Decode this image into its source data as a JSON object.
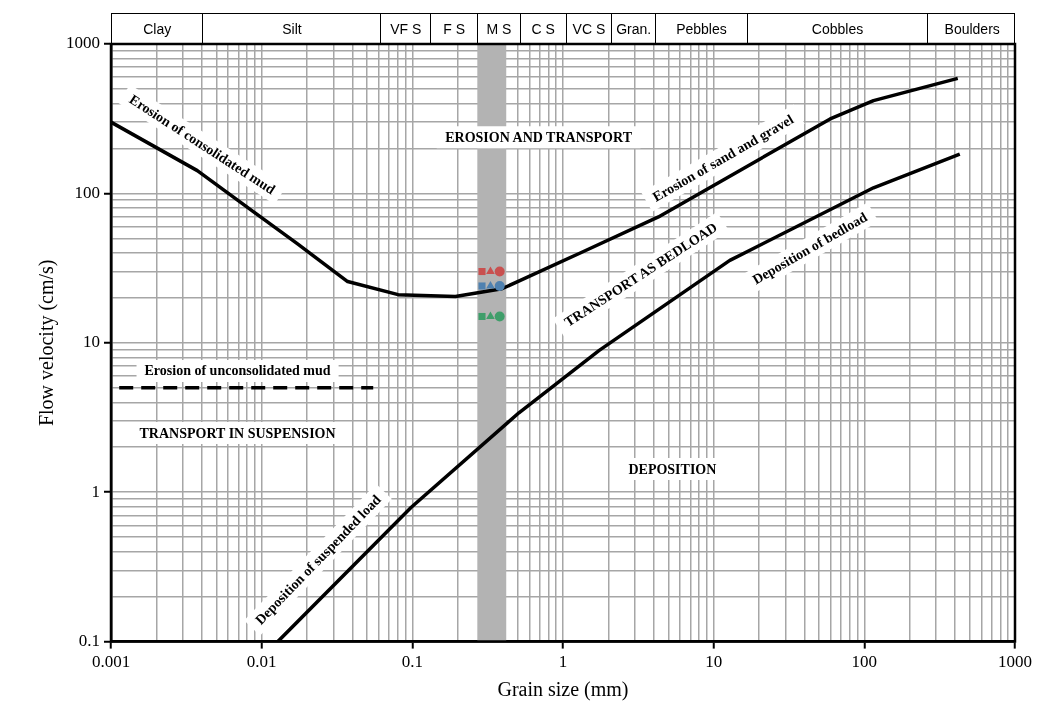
{
  "chart_data": {
    "type": "line",
    "xlabel": "Grain size (mm)",
    "ylabel": "Flow velocity (cm/s)",
    "log": "xy",
    "xlim": [
      0.001,
      1000
    ],
    "ylim": [
      0.1,
      1000
    ],
    "xticks": [
      0.001,
      0.01,
      0.1,
      1,
      10,
      100,
      1000
    ],
    "yticks": [
      0.1,
      1,
      10,
      100,
      1000
    ],
    "grid": true,
    "legend": false,
    "series": [
      {
        "color": "#000000",
        "line_style": "solid",
        "marker": "none",
        "x": [
          0.001,
          0.00374,
          0.0174,
          0.0372,
          0.0805,
          0.193,
          0.393,
          0.5,
          1.28,
          4.3,
          59.3,
          115,
          417
        ],
        "values": [
          300,
          142,
          45.7,
          25.7,
          21,
          20.4,
          23,
          25.7,
          39.6,
          69.6,
          315,
          418,
          589
        ]
      },
      {
        "color": "#000000",
        "line_style": "solid",
        "marker": "none",
        "x": [
          0.0128,
          0.098,
          0.51,
          1.74,
          12.8,
          115,
          430
        ],
        "values": [
          0.1,
          0.79,
          3.4,
          8.9,
          35.6,
          109,
          183
        ]
      },
      {
        "color": "#000000",
        "line_style": "dashed",
        "marker": "none",
        "x": [
          0.001,
          0.055
        ],
        "values": [
          5,
          5
        ]
      },
      {
        "type": "scatter",
        "marker": "square",
        "x": [
          0.29,
          0.29,
          0.29
        ],
        "values": [
          30,
          24,
          15
        ],
        "colors": [
          "#c9504f",
          "#4f81b0",
          "#3f9e6a"
        ]
      },
      {
        "type": "scatter",
        "marker": "triangle",
        "x": [
          0.33,
          0.33,
          0.33
        ],
        "values": [
          30,
          24,
          15
        ],
        "colors": [
          "#c9504f",
          "#4f81b0",
          "#3f9e6a"
        ]
      },
      {
        "type": "scatter",
        "marker": "circle",
        "x": [
          0.38,
          0.38,
          0.38
        ],
        "values": [
          30,
          24,
          15
        ],
        "colors": [
          "#c9504f",
          "#4f81b0",
          "#3f9e6a"
        ]
      }
    ],
    "bands": [
      {
        "axis": "x",
        "from": 0.27,
        "to": 0.42,
        "color": "#b3b3b3"
      }
    ],
    "annotations": [
      "Erosion of consolidated mud",
      "EROSION AND TRANSPORT",
      "Erosion of sand and gravel",
      "TRANSPORT AS BEDLOAD",
      "Deposition of bedload",
      "Erosion of unconsolidated mud",
      "TRANSPORT IN SUSPENSION",
      "DEPOSITION",
      "Deposition of suspended load",
      "Clay",
      "Silt",
      "VF S",
      "F S",
      "M S",
      "C S",
      "VC S",
      "Gran.",
      "Pebbles",
      "Cobbles",
      "Boulders"
    ]
  }
}
